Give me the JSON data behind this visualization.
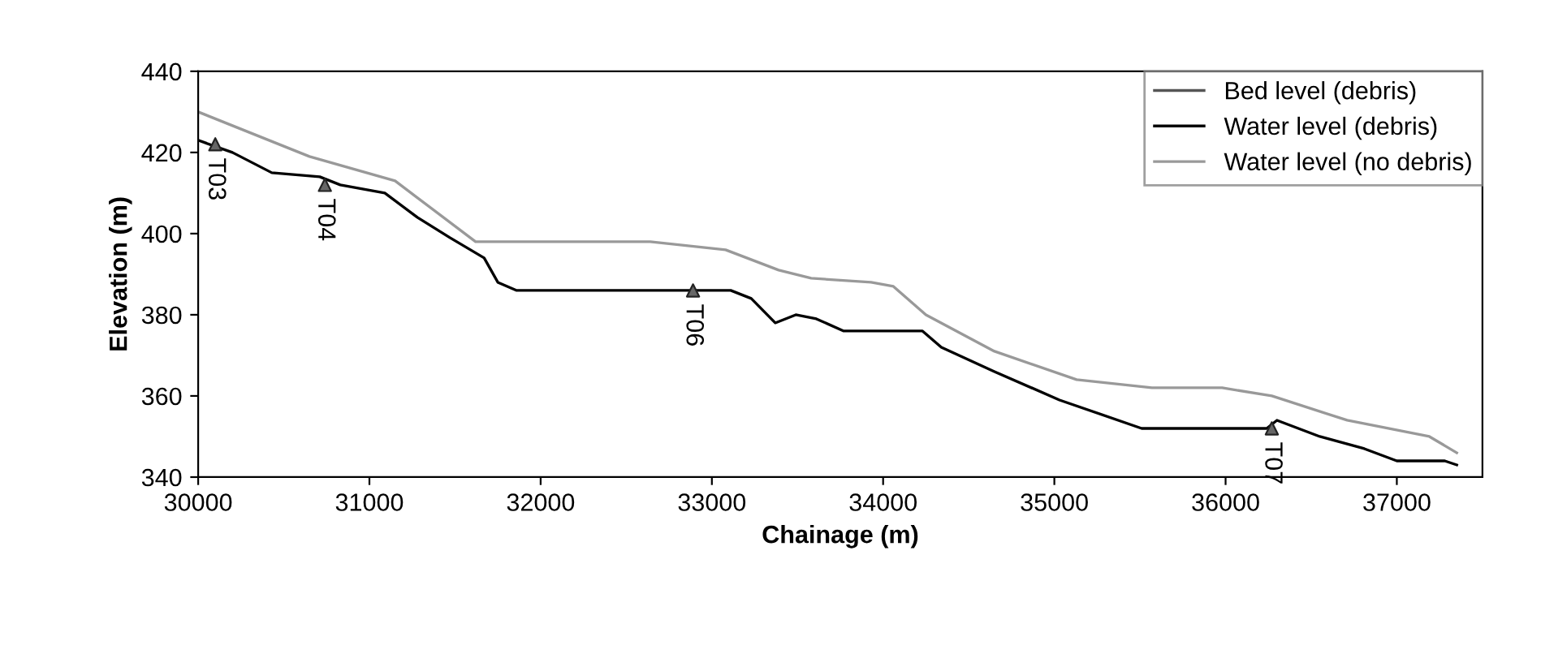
{
  "chart_data": {
    "type": "line",
    "xlabel": "Chainage (m)",
    "ylabel": "Elevation (m)",
    "xlim": [
      30000,
      37500
    ],
    "xticks": [
      30000,
      31000,
      32000,
      33000,
      34000,
      35000,
      36000,
      37000
    ],
    "ylim": [
      340,
      440
    ],
    "yticks": [
      340,
      360,
      380,
      400,
      420,
      440
    ],
    "grid": false,
    "legend": "top right",
    "series": [
      {
        "name": "Bed level (debris)",
        "color": "#555555"
      },
      {
        "name": "Water level (debris)",
        "color": "#000000",
        "x": [
          30000,
          30200,
          30430,
          30710,
          30830,
          31090,
          31280,
          31470,
          31670,
          31750,
          31860,
          33110,
          33230,
          33370,
          33490,
          33610,
          33770,
          34230,
          34340,
          34650,
          35030,
          35510,
          36240,
          36300,
          36550,
          36810,
          37000,
          37280,
          37350
        ],
        "values": [
          423,
          420,
          415,
          414,
          412,
          410,
          404,
          399,
          394,
          388,
          386,
          386,
          384,
          378,
          380,
          379,
          376,
          376,
          372,
          366,
          359,
          352,
          352,
          354,
          350,
          347,
          344,
          344,
          343
        ]
      },
      {
        "name": "Water level (no debris)",
        "color": "#999999",
        "x": [
          30000,
          30650,
          31150,
          31620,
          32640,
          33080,
          33390,
          33580,
          33930,
          34060,
          34250,
          34650,
          35130,
          35570,
          35980,
          36270,
          36710,
          37190,
          37350
        ],
        "values": [
          430,
          419,
          413,
          398,
          398,
          396,
          391,
          389,
          388,
          387,
          380,
          371,
          364,
          362,
          362,
          360,
          354,
          350,
          346
        ]
      },
      {
        "type": "scatter",
        "color": "#666666",
        "marker": "triangle",
        "x": [
          30100,
          30740,
          32890,
          36270
        ],
        "values": [
          422,
          412,
          386,
          352
        ]
      }
    ],
    "annotations": [
      {
        "text": "T03",
        "x": 30100,
        "y": 422
      },
      {
        "text": "T04",
        "x": 30740,
        "y": 412
      },
      {
        "text": "T06",
        "x": 32890,
        "y": 386
      },
      {
        "text": "T07",
        "x": 36270,
        "y": 352
      }
    ]
  }
}
